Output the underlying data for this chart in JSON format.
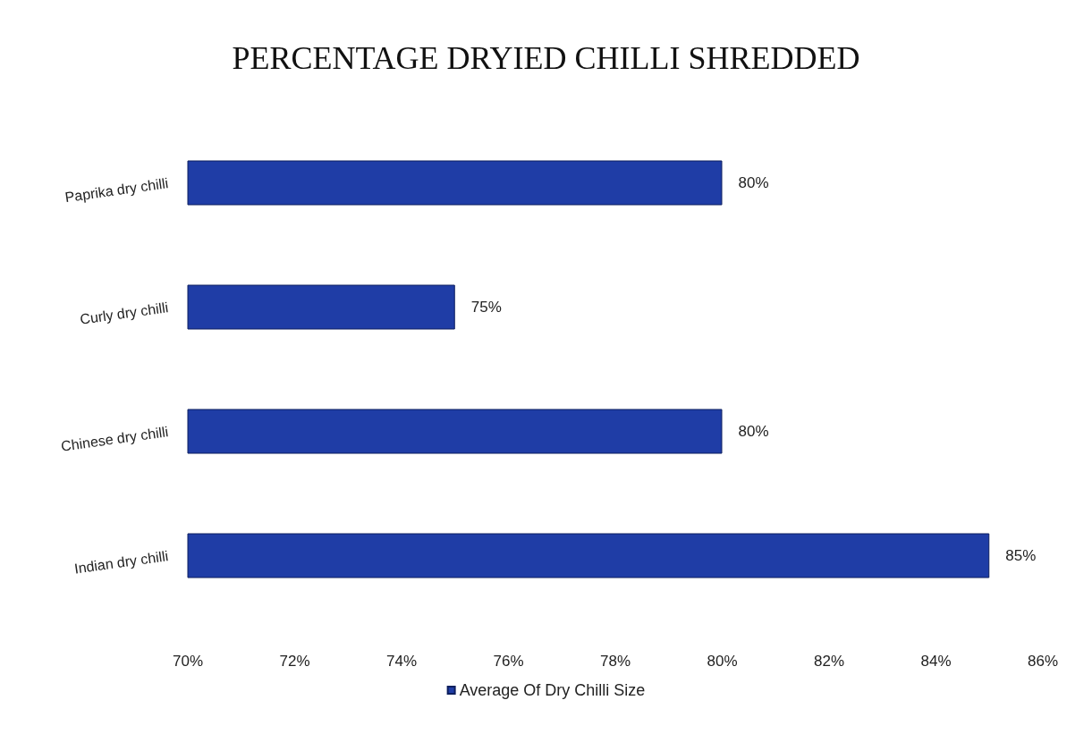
{
  "chart_data": {
    "type": "bar",
    "orientation": "horizontal",
    "title": "PERCENTAGE DRYIED CHILLI SHREDDED",
    "categories": [
      "Paprika dry chilli",
      "Curly dry chilli",
      "Chinese dry chilli",
      "Indian dry chilli"
    ],
    "series": [
      {
        "name": "Average Of Dry Chilli Size",
        "color": "#1f3da6",
        "values": [
          80,
          75,
          80,
          85
        ],
        "value_labels": [
          "80%",
          "75%",
          "80%",
          "85%"
        ]
      }
    ],
    "xlim": [
      70,
      86
    ],
    "xticks": [
      {
        "value": 70,
        "label": "70%"
      },
      {
        "value": 72,
        "label": "72%"
      },
      {
        "value": 74,
        "label": "74%"
      },
      {
        "value": 76,
        "label": "76%"
      },
      {
        "value": 78,
        "label": "78%"
      },
      {
        "value": 80,
        "label": "80%"
      },
      {
        "value": 82,
        "label": "82%"
      },
      {
        "value": 84,
        "label": "84%"
      },
      {
        "value": 86,
        "label": "86%"
      }
    ],
    "grid": false,
    "legend": "bottom"
  }
}
